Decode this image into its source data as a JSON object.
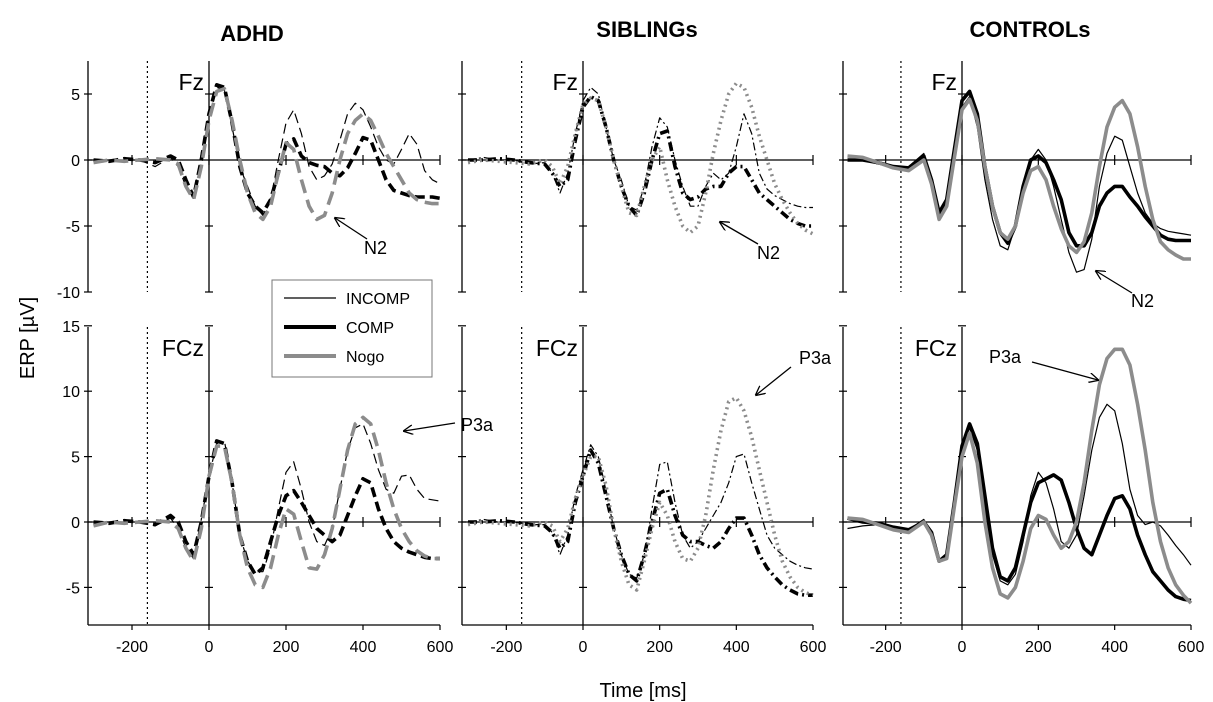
{
  "figure": {
    "ylabel": "ERP [µV]",
    "xlabel": "Time [ms]",
    "groups": [
      "ADHD",
      "SIBLINGs",
      "CONTROLs"
    ],
    "rows": [
      "Fz",
      "FCz"
    ],
    "legend": [
      {
        "name": "INCOMP",
        "style": "thin-black"
      },
      {
        "name": "COMP",
        "style": "thick-black"
      },
      {
        "name": "Nogo",
        "style": "thick-gray"
      }
    ],
    "x_ticks": [
      "-200",
      "0",
      "200",
      "400",
      "600"
    ],
    "fz_y_ticks": [
      "5",
      "0",
      "-5",
      "-10"
    ],
    "fcz_y_ticks": [
      "15",
      "10",
      "5",
      "0",
      "-5"
    ],
    "annotations": {
      "n2": "N2",
      "p3a": "P3a"
    }
  },
  "chart_data": [
    {
      "type": "line",
      "group": "ADHD",
      "electrode": "Fz",
      "style": "dashed",
      "xlim": [
        -300,
        600
      ],
      "ylim": [
        -10,
        7.5
      ],
      "x": [
        -300,
        -260,
        -220,
        -180,
        -140,
        -100,
        -80,
        -60,
        -40,
        -20,
        0,
        20,
        40,
        60,
        80,
        100,
        120,
        140,
        160,
        180,
        200,
        220,
        240,
        260,
        280,
        300,
        320,
        340,
        360,
        380,
        400,
        420,
        440,
        460,
        480,
        500,
        520,
        540,
        560,
        580,
        600
      ],
      "series": [
        {
          "name": "INCOMP",
          "values": [
            0,
            0,
            0,
            0,
            -0.5,
            0.2,
            -0.5,
            -2,
            -2.8,
            0.5,
            3.5,
            5.5,
            5.3,
            2.5,
            -0.5,
            -2,
            -3.5,
            -4.2,
            -3,
            0,
            2.8,
            3.8,
            2,
            -0.5,
            -1.5,
            -1.2,
            -0.3,
            1.5,
            3.5,
            4.3,
            3.8,
            2.5,
            1,
            0,
            -0.3,
            0.8,
            2,
            1.2,
            -0.8,
            -1.5,
            -1.8
          ]
        },
        {
          "name": "COMP",
          "values": [
            0,
            -0.1,
            0.1,
            0,
            -0.2,
            0.3,
            0,
            -1.5,
            -2.8,
            0,
            3.5,
            5.7,
            5.5,
            2.8,
            -0.5,
            -2.5,
            -3.5,
            -4,
            -3,
            -1,
            1.2,
            1.6,
            0.3,
            -0.2,
            -0.4,
            -0.5,
            -1,
            -1.2,
            -0.6,
            0.5,
            1.7,
            1.5,
            0,
            -1.5,
            -2.3,
            -2.5,
            -2.7,
            -2.8,
            -2.8,
            -2.8,
            -2.9
          ]
        },
        {
          "name": "Nogo",
          "values": [
            -0.2,
            0,
            -0.1,
            0,
            0.1,
            0,
            -0.3,
            -2,
            -3,
            -0.5,
            3,
            5.2,
            5.4,
            3,
            0,
            -2.5,
            -4,
            -4.5,
            -3.5,
            -1,
            1.3,
            0.8,
            -1.5,
            -3.5,
            -4.5,
            -4.2,
            -2.5,
            0,
            2,
            3,
            3.5,
            3,
            1.8,
            0.5,
            -0.5,
            -1.5,
            -2.5,
            -3,
            -3.2,
            -3.3,
            -3.3
          ]
        }
      ]
    },
    {
      "type": "line",
      "group": "SIBLINGs",
      "electrode": "Fz",
      "style": "dash-dot",
      "xlim": [
        -300,
        600
      ],
      "ylim": [
        -10,
        7.5
      ],
      "x": [
        -300,
        -260,
        -220,
        -180,
        -140,
        -100,
        -80,
        -60,
        -40,
        -20,
        0,
        20,
        40,
        60,
        80,
        100,
        120,
        140,
        160,
        180,
        200,
        220,
        240,
        260,
        280,
        300,
        320,
        340,
        360,
        380,
        400,
        420,
        440,
        460,
        480,
        500,
        520,
        540,
        560,
        580,
        600
      ],
      "series": [
        {
          "name": "INCOMP",
          "values": [
            0,
            0.2,
            0,
            0,
            -0.3,
            -0.2,
            -1,
            -2.5,
            -1,
            2,
            4.5,
            5.5,
            5,
            2.5,
            0,
            -1.5,
            -3.5,
            -3.8,
            -2,
            1,
            3.2,
            2.5,
            0,
            -2,
            -3.5,
            -3.5,
            -2,
            -1,
            -1.5,
            -1,
            1,
            3.5,
            2,
            -1,
            -2.2,
            -2.7,
            -3,
            -3.3,
            -3.5,
            -3.6,
            -3.6
          ]
        },
        {
          "name": "COMP",
          "values": [
            0,
            0,
            0.1,
            0,
            -0.2,
            -0.3,
            -1,
            -2,
            -1.5,
            1.5,
            4,
            4.8,
            4.5,
            2.5,
            0,
            -2,
            -3.5,
            -4.2,
            -2.5,
            0,
            2,
            2.2,
            -0.5,
            -2.5,
            -3,
            -2.8,
            -2.2,
            -2,
            -2,
            -1,
            -0.5,
            -0.5,
            -1.5,
            -2.5,
            -3,
            -3.5,
            -4,
            -4.5,
            -4.8,
            -5,
            -5
          ]
        },
        {
          "name": "Nogo",
          "values": [
            -0.2,
            0,
            -0.1,
            -0.2,
            -0.3,
            0,
            -0.5,
            -1.8,
            -0.5,
            2,
            4.2,
            4.7,
            4.5,
            2.5,
            0,
            -2,
            -4,
            -4.2,
            -2,
            0,
            1,
            -1.5,
            -3.5,
            -5,
            -5.5,
            -5,
            -2.5,
            0.5,
            3,
            5,
            5.8,
            5.5,
            4,
            1.8,
            0,
            -1.8,
            -3,
            -4,
            -4.8,
            -5.3,
            -5.6
          ]
        }
      ]
    },
    {
      "type": "line",
      "group": "CONTROLs",
      "electrode": "Fz",
      "style": "solid",
      "xlim": [
        -300,
        600
      ],
      "ylim": [
        -10,
        7.5
      ],
      "x": [
        -300,
        -260,
        -220,
        -180,
        -140,
        -100,
        -80,
        -60,
        -40,
        -20,
        0,
        20,
        40,
        60,
        80,
        100,
        120,
        140,
        160,
        180,
        200,
        220,
        240,
        260,
        280,
        300,
        320,
        340,
        360,
        380,
        400,
        420,
        440,
        460,
        480,
        500,
        520,
        540,
        560,
        580,
        600
      ],
      "series": [
        {
          "name": "INCOMP",
          "values": [
            0,
            0,
            -0.3,
            -0.5,
            -0.5,
            0.5,
            -1.5,
            -4,
            -3,
            0.5,
            4,
            4.8,
            2.5,
            -1.5,
            -4.5,
            -6.5,
            -6.8,
            -5,
            -2,
            0,
            0.8,
            0,
            -2,
            -4.5,
            -7,
            -8.5,
            -8.3,
            -6,
            -2,
            0.5,
            1.8,
            1.5,
            -0.5,
            -2.5,
            -4,
            -4.8,
            -5.2,
            -5.4,
            -5.5,
            -5.6,
            -5.7
          ]
        },
        {
          "name": "COMP",
          "values": [
            0,
            0,
            -0.2,
            -0.5,
            -0.6,
            0.3,
            -1.5,
            -4,
            -3,
            0.8,
            4.5,
            5.2,
            3.5,
            -0.5,
            -3.5,
            -5.5,
            -6.3,
            -5,
            -2,
            0,
            0.3,
            -0.2,
            -1.5,
            -3,
            -5.5,
            -6.5,
            -6.5,
            -5.5,
            -3.5,
            -2.5,
            -2,
            -2,
            -2.8,
            -3.5,
            -4.3,
            -5,
            -5.7,
            -6,
            -6.1,
            -6.1,
            -6.1
          ]
        },
        {
          "name": "Nogo",
          "values": [
            0.3,
            0.2,
            -0.2,
            -0.6,
            -0.8,
            0,
            -1.8,
            -4.5,
            -3.5,
            0.2,
            3.8,
            4.6,
            3,
            -0.5,
            -3.5,
            -5.5,
            -6,
            -5,
            -2.5,
            -0.8,
            -0.5,
            -1.5,
            -3.5,
            -5.2,
            -6.5,
            -7,
            -6.2,
            -4,
            -0.5,
            2.5,
            4,
            4.5,
            3.5,
            1,
            -2,
            -4.5,
            -6.2,
            -6.8,
            -7.2,
            -7.5,
            -7.5
          ]
        }
      ]
    },
    {
      "type": "line",
      "group": "ADHD",
      "electrode": "FCz",
      "style": "dashed",
      "xlim": [
        -300,
        600
      ],
      "ylim": [
        -8,
        15
      ],
      "x": [
        -300,
        -260,
        -220,
        -180,
        -140,
        -100,
        -80,
        -60,
        -40,
        -20,
        0,
        20,
        40,
        60,
        80,
        100,
        120,
        140,
        160,
        180,
        200,
        220,
        240,
        260,
        280,
        300,
        320,
        340,
        360,
        380,
        400,
        420,
        440,
        460,
        480,
        500,
        520,
        540,
        560,
        580,
        600
      ],
      "series": [
        {
          "name": "INCOMP",
          "values": [
            0,
            0,
            0,
            0,
            -0.3,
            0.3,
            -0.5,
            -2,
            -2.8,
            0.2,
            3.5,
            6,
            6.2,
            3,
            -1,
            -3,
            -3.8,
            -3.8,
            -2,
            1,
            3.8,
            4.6,
            2.5,
            0,
            -1.5,
            -1.8,
            -0.5,
            2.5,
            5.5,
            7.2,
            7.5,
            6,
            4,
            2.5,
            2.2,
            3.5,
            3.6,
            2.5,
            1.8,
            1.7,
            1.6
          ]
        },
        {
          "name": "COMP",
          "values": [
            0,
            -0.1,
            0.1,
            0,
            -0.2,
            0.5,
            0,
            -1.5,
            -2.5,
            0,
            3.5,
            6.2,
            6,
            3,
            -1,
            -3,
            -4,
            -3.5,
            -1.5,
            0.5,
            2,
            2.4,
            1.5,
            0.5,
            -0.5,
            -1,
            -1.5,
            -1,
            0.5,
            2,
            3.3,
            3,
            1,
            -0.5,
            -1.5,
            -2,
            -2.3,
            -2.5,
            -2.7,
            -2.8,
            -2.8
          ]
        },
        {
          "name": "Nogo",
          "values": [
            -0.3,
            0,
            -0.1,
            0,
            0.1,
            0,
            -0.5,
            -2,
            -3,
            -0.5,
            3.5,
            5.8,
            5.8,
            3,
            -1,
            -3.5,
            -4.8,
            -5,
            -3.5,
            -1,
            1,
            0.6,
            -1.5,
            -3.5,
            -3.6,
            -2.5,
            -0.5,
            2.5,
            5.5,
            7.5,
            8,
            7.5,
            5.5,
            3,
            1,
            -0.5,
            -1.5,
            -2.2,
            -2.6,
            -2.8,
            -2.8
          ]
        }
      ]
    },
    {
      "type": "line",
      "group": "SIBLINGs",
      "electrode": "FCz",
      "style": "dash-dot",
      "xlim": [
        -300,
        600
      ],
      "ylim": [
        -8,
        15
      ],
      "x": [
        -300,
        -260,
        -220,
        -180,
        -140,
        -100,
        -80,
        -60,
        -40,
        -20,
        0,
        20,
        40,
        60,
        80,
        100,
        120,
        140,
        160,
        180,
        200,
        220,
        240,
        260,
        280,
        300,
        320,
        340,
        360,
        380,
        400,
        420,
        440,
        460,
        480,
        500,
        520,
        540,
        560,
        580,
        600
      ],
      "series": [
        {
          "name": "INCOMP",
          "values": [
            0,
            0.2,
            0,
            0,
            -0.2,
            -0.2,
            -0.8,
            -2.5,
            -1,
            2,
            4,
            5.9,
            5,
            2.5,
            -0.5,
            -2.5,
            -4,
            -4.3,
            -2.5,
            1,
            4.4,
            4.6,
            1.5,
            -1,
            -2,
            -1.5,
            -0.5,
            0.5,
            1.5,
            3,
            5,
            5.2,
            3,
            1,
            -1,
            -2,
            -2.5,
            -3,
            -3.3,
            -3.5,
            -3.6
          ]
        },
        {
          "name": "COMP",
          "values": [
            0,
            0,
            0.1,
            0,
            -0.2,
            -0.3,
            -0.8,
            -2,
            -1.5,
            1.5,
            3.5,
            5.5,
            4.5,
            2,
            -0.5,
            -2.5,
            -4,
            -4.5,
            -2.5,
            0,
            2.2,
            2.5,
            0.5,
            -1,
            -1.5,
            -1.5,
            -1.8,
            -2,
            -1.5,
            -0.5,
            0.3,
            0.3,
            -1,
            -2.5,
            -3.5,
            -4.2,
            -4.8,
            -5.2,
            -5.5,
            -5.6,
            -5.6
          ]
        },
        {
          "name": "Nogo",
          "values": [
            -0.2,
            0,
            -0.1,
            -0.2,
            -0.3,
            0,
            -0.3,
            -1.5,
            -0.5,
            1.8,
            3.5,
            5,
            5,
            2.8,
            -0.5,
            -3,
            -4.8,
            -5.2,
            -3,
            -0.5,
            1.5,
            0.5,
            -1.5,
            -2.8,
            -3,
            -2,
            0.5,
            4,
            7,
            9.2,
            9.5,
            8.5,
            6.5,
            4,
            1.5,
            -1,
            -3,
            -4.2,
            -5,
            -5.4,
            -5.6
          ]
        }
      ]
    },
    {
      "type": "line",
      "group": "CONTROLs",
      "electrode": "FCz",
      "style": "solid",
      "xlim": [
        -300,
        600
      ],
      "ylim": [
        -8,
        15
      ],
      "x": [
        -300,
        -260,
        -220,
        -180,
        -140,
        -100,
        -80,
        -60,
        -40,
        -20,
        0,
        20,
        40,
        60,
        80,
        100,
        120,
        140,
        160,
        180,
        200,
        220,
        240,
        260,
        280,
        300,
        320,
        340,
        360,
        380,
        400,
        420,
        440,
        460,
        480,
        500,
        520,
        540,
        560,
        580,
        600
      ],
      "series": [
        {
          "name": "INCOMP",
          "values": [
            -0.5,
            -0.3,
            -0.2,
            -0.4,
            -0.6,
            0.2,
            -0.8,
            -3,
            -2.5,
            1.5,
            5.5,
            7.2,
            5.5,
            1,
            -2.5,
            -4.5,
            -4.8,
            -4,
            -1.5,
            2,
            3.8,
            3,
            1,
            -1.5,
            -2,
            -1,
            2,
            5.5,
            8,
            9,
            8.5,
            6,
            2.5,
            0.5,
            -0.2,
            0,
            -0.3,
            -1,
            -1.8,
            -2.5,
            -3.3
          ]
        },
        {
          "name": "COMP",
          "values": [
            0.3,
            0,
            -0.1,
            -0.4,
            -0.6,
            0,
            -0.8,
            -3,
            -2.5,
            1.5,
            5.8,
            7.5,
            6,
            2,
            -2,
            -4.2,
            -4.5,
            -3.5,
            -1,
            1.5,
            3,
            3.3,
            3.6,
            3.2,
            1.5,
            -0.5,
            -2,
            -2.5,
            -1,
            0.5,
            1.8,
            2,
            1,
            -1,
            -2.5,
            -3.8,
            -4.5,
            -5.2,
            -5.7,
            -5.9,
            -6
          ]
        },
        {
          "name": "Nogo",
          "values": [
            0.3,
            0.2,
            -0.2,
            -0.6,
            -0.8,
            0,
            -1,
            -3,
            -2.8,
            1.2,
            5,
            6.8,
            4.5,
            0,
            -3.5,
            -5.5,
            -5.8,
            -5,
            -3,
            -0.5,
            0.5,
            0.2,
            -1,
            -2,
            -1.5,
            0,
            3,
            7,
            10.5,
            12.5,
            13.2,
            13.2,
            12,
            9,
            5.5,
            1.5,
            -1.5,
            -3.5,
            -4.8,
            -5.6,
            -6.2
          ]
        }
      ]
    }
  ]
}
